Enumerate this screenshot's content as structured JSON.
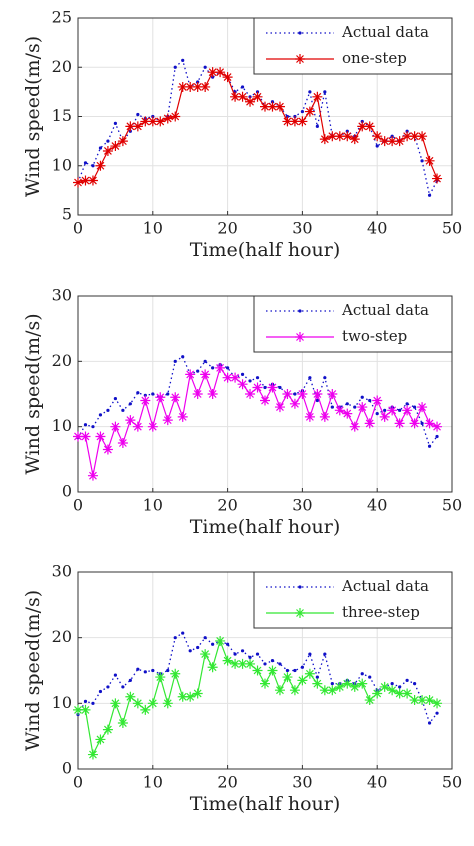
{
  "chart_data": [
    {
      "type": "line",
      "xlabel": "Time(half hour)",
      "ylabel": "Wind speed(m/s)",
      "x": [
        0,
        1,
        2,
        3,
        4,
        5,
        6,
        7,
        8,
        9,
        10,
        11,
        12,
        13,
        14,
        15,
        16,
        17,
        18,
        19,
        20,
        21,
        22,
        23,
        24,
        25,
        26,
        27,
        28,
        29,
        30,
        31,
        32,
        33,
        34,
        35,
        36,
        37,
        38,
        39,
        40,
        41,
        42,
        43,
        44,
        45,
        46,
        47,
        48
      ],
      "xlim": [
        0,
        50
      ],
      "xticks": [
        0,
        10,
        20,
        30,
        40,
        50
      ],
      "ylim": [
        5,
        25
      ],
      "yticks": [
        5,
        10,
        15,
        20,
        25
      ],
      "grid": true,
      "legend": "upper right",
      "series": [
        {
          "name": "Actual data",
          "color": "#1010c8",
          "values": [
            8.3,
            10.3,
            10,
            11.8,
            12.5,
            14.3,
            12.5,
            13.5,
            15.2,
            14.8,
            15,
            14.5,
            15,
            20,
            20.7,
            18,
            18.5,
            20,
            19,
            19.5,
            19,
            17.5,
            18,
            17,
            17.5,
            16,
            16.5,
            16,
            15,
            15,
            15.5,
            17.5,
            14,
            17.5,
            13,
            13,
            13.5,
            13,
            14.5,
            14,
            12,
            12.5,
            13,
            12.5,
            13.5,
            13,
            10.5,
            7,
            8.5
          ]
        },
        {
          "name": "one-step",
          "color": "#e00000",
          "values": [
            8.3,
            8.5,
            8.5,
            10,
            11.5,
            12,
            12.5,
            14,
            14,
            14.5,
            14.5,
            14.5,
            14.8,
            15,
            18,
            18,
            18,
            18,
            19.5,
            19.5,
            19,
            17,
            17,
            16.5,
            17,
            16,
            16,
            16,
            14.5,
            14.5,
            14.5,
            15.5,
            17,
            12.7,
            13,
            13,
            13,
            12.7,
            14,
            14,
            13,
            12.5,
            12.5,
            12.5,
            13,
            13,
            13,
            10.5,
            8.7
          ]
        }
      ]
    },
    {
      "type": "line",
      "xlabel": "Time(half hour)",
      "ylabel": "Wind speed(m/s)",
      "x": [
        0,
        1,
        2,
        3,
        4,
        5,
        6,
        7,
        8,
        9,
        10,
        11,
        12,
        13,
        14,
        15,
        16,
        17,
        18,
        19,
        20,
        21,
        22,
        23,
        24,
        25,
        26,
        27,
        28,
        29,
        30,
        31,
        32,
        33,
        34,
        35,
        36,
        37,
        38,
        39,
        40,
        41,
        42,
        43,
        44,
        45,
        46,
        47,
        48
      ],
      "xlim": [
        0,
        50
      ],
      "xticks": [
        0,
        10,
        20,
        30,
        40,
        50
      ],
      "ylim": [
        0,
        30
      ],
      "yticks": [
        0,
        10,
        20,
        30
      ],
      "grid": true,
      "legend": "upper right",
      "series": [
        {
          "name": "Actual data",
          "color": "#1010c8",
          "values": [
            8.3,
            10.3,
            10,
            11.8,
            12.5,
            14.3,
            12.5,
            13.5,
            15.2,
            14.8,
            15,
            14.5,
            15,
            20,
            20.7,
            18,
            18.5,
            20,
            19,
            19.5,
            19,
            17.5,
            18,
            17,
            17.5,
            16,
            16.5,
            16,
            15,
            15,
            15.5,
            17.5,
            14,
            17.5,
            13,
            13,
            13.5,
            13,
            14.5,
            14,
            12,
            12.5,
            13,
            12.5,
            13.5,
            13,
            10.5,
            7,
            8.5
          ]
        },
        {
          "name": "two-step",
          "color": "#ee00ee",
          "values": [
            8.5,
            8.5,
            2.5,
            8.5,
            6.5,
            10,
            7.5,
            11,
            10,
            14,
            10,
            14.5,
            11,
            14.5,
            11.5,
            18,
            15,
            18,
            15,
            19,
            17.5,
            17.5,
            16.5,
            15,
            16,
            14,
            16,
            13,
            15,
            13.5,
            15,
            11.5,
            15,
            11.5,
            15,
            12.5,
            12,
            10,
            13,
            10.5,
            14,
            11.5,
            12.5,
            10.5,
            12.5,
            10.5,
            13,
            10.5,
            10
          ]
        }
      ]
    },
    {
      "type": "line",
      "xlabel": "Time(half hour)",
      "ylabel": "Wind speed(m/s)",
      "x": [
        0,
        1,
        2,
        3,
        4,
        5,
        6,
        7,
        8,
        9,
        10,
        11,
        12,
        13,
        14,
        15,
        16,
        17,
        18,
        19,
        20,
        21,
        22,
        23,
        24,
        25,
        26,
        27,
        28,
        29,
        30,
        31,
        32,
        33,
        34,
        35,
        36,
        37,
        38,
        39,
        40,
        41,
        42,
        43,
        44,
        45,
        46,
        47,
        48
      ],
      "xlim": [
        0,
        50
      ],
      "xticks": [
        0,
        10,
        20,
        30,
        40,
        50
      ],
      "ylim": [
        0,
        30
      ],
      "yticks": [
        0,
        10,
        20,
        30
      ],
      "grid": true,
      "legend": "upper right",
      "series": [
        {
          "name": "Actual data",
          "color": "#1010c8",
          "values": [
            8.3,
            10.3,
            10,
            11.8,
            12.5,
            14.3,
            12.5,
            13.5,
            15.2,
            14.8,
            15,
            14.5,
            15,
            20,
            20.7,
            18,
            18.5,
            20,
            19,
            19.5,
            19,
            17.5,
            18,
            17,
            17.5,
            16,
            16.5,
            16,
            15,
            15,
            15.5,
            17.5,
            14,
            17.5,
            13,
            13,
            13.5,
            13,
            14.5,
            14,
            12,
            12.5,
            13,
            12.5,
            13.5,
            13,
            10.5,
            7,
            8.5
          ]
        },
        {
          "name": "three-step",
          "color": "#33e833",
          "values": [
            9,
            9,
            2.2,
            4.5,
            6,
            10,
            7,
            11,
            10,
            9,
            10,
            14,
            10,
            14.5,
            11,
            11,
            11.5,
            17.5,
            15.5,
            19.5,
            16.5,
            16,
            16,
            16,
            15,
            13,
            15,
            12,
            14,
            12,
            13.5,
            14.5,
            13,
            12,
            12,
            12.5,
            13,
            12.5,
            13,
            10.5,
            11.5,
            12.5,
            12,
            11.5,
            11.5,
            10.5,
            10.5,
            10.5,
            10
          ]
        }
      ]
    }
  ]
}
